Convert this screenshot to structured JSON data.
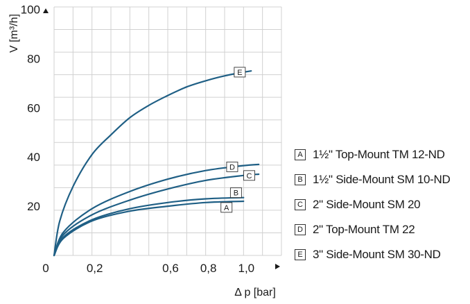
{
  "chart_data": {
    "type": "line",
    "title": "",
    "xlabel": "Δ p [bar]",
    "ylabel": "V [m³/h]",
    "origin_label": "0",
    "xlim": [
      0,
      1.2
    ],
    "ylim": [
      0,
      100
    ],
    "x_ticks": [
      {
        "value": 0.2,
        "label": "0,2"
      },
      {
        "value": 0.6,
        "label": "0,6"
      },
      {
        "value": 0.8,
        "label": "0,8"
      },
      {
        "value": 1.0,
        "label": "1,0"
      }
    ],
    "y_ticks": [
      20,
      40,
      60,
      80,
      100
    ],
    "grid": true,
    "legend_position": "right",
    "line_color": "#1f5f85",
    "series": [
      {
        "key": "A",
        "name": "1½\" Top-Mount TM 12-ND",
        "x": [
          0,
          0.05,
          0.2,
          0.4,
          0.6,
          0.8,
          1.0
        ],
        "y": [
          0,
          7,
          14,
          18,
          20,
          21.5,
          22
        ]
      },
      {
        "key": "B",
        "name": "1½\" Side-Mount SM 10-ND",
        "x": [
          0,
          0.05,
          0.2,
          0.4,
          0.6,
          0.8,
          1.0
        ],
        "y": [
          0,
          7.5,
          14.5,
          19,
          21.5,
          23,
          23.5
        ]
      },
      {
        "key": "C",
        "name": "2\" Side-Mount SM 20",
        "x": [
          0,
          0.05,
          0.2,
          0.4,
          0.6,
          0.8,
          1.0,
          1.08
        ],
        "y": [
          0,
          8.5,
          16.5,
          22.5,
          27,
          30.5,
          32.5,
          33
        ]
      },
      {
        "key": "D",
        "name": "2\" Top-Mount TM 22",
        "x": [
          0,
          0.05,
          0.2,
          0.4,
          0.6,
          0.8,
          1.0,
          1.08
        ],
        "y": [
          0,
          9.5,
          19,
          26,
          31,
          34.5,
          36.5,
          37
        ]
      },
      {
        "key": "E",
        "name": "3\" Side-Mount SM 30-ND",
        "x": [
          0,
          0.03,
          0.1,
          0.2,
          0.3,
          0.4,
          0.5,
          0.6,
          0.7,
          0.8,
          0.9,
          1.0,
          1.04
        ],
        "y": [
          0,
          14,
          28,
          41,
          49,
          56,
          61,
          65,
          68.5,
          71,
          73,
          74.5,
          75
        ]
      }
    ]
  }
}
